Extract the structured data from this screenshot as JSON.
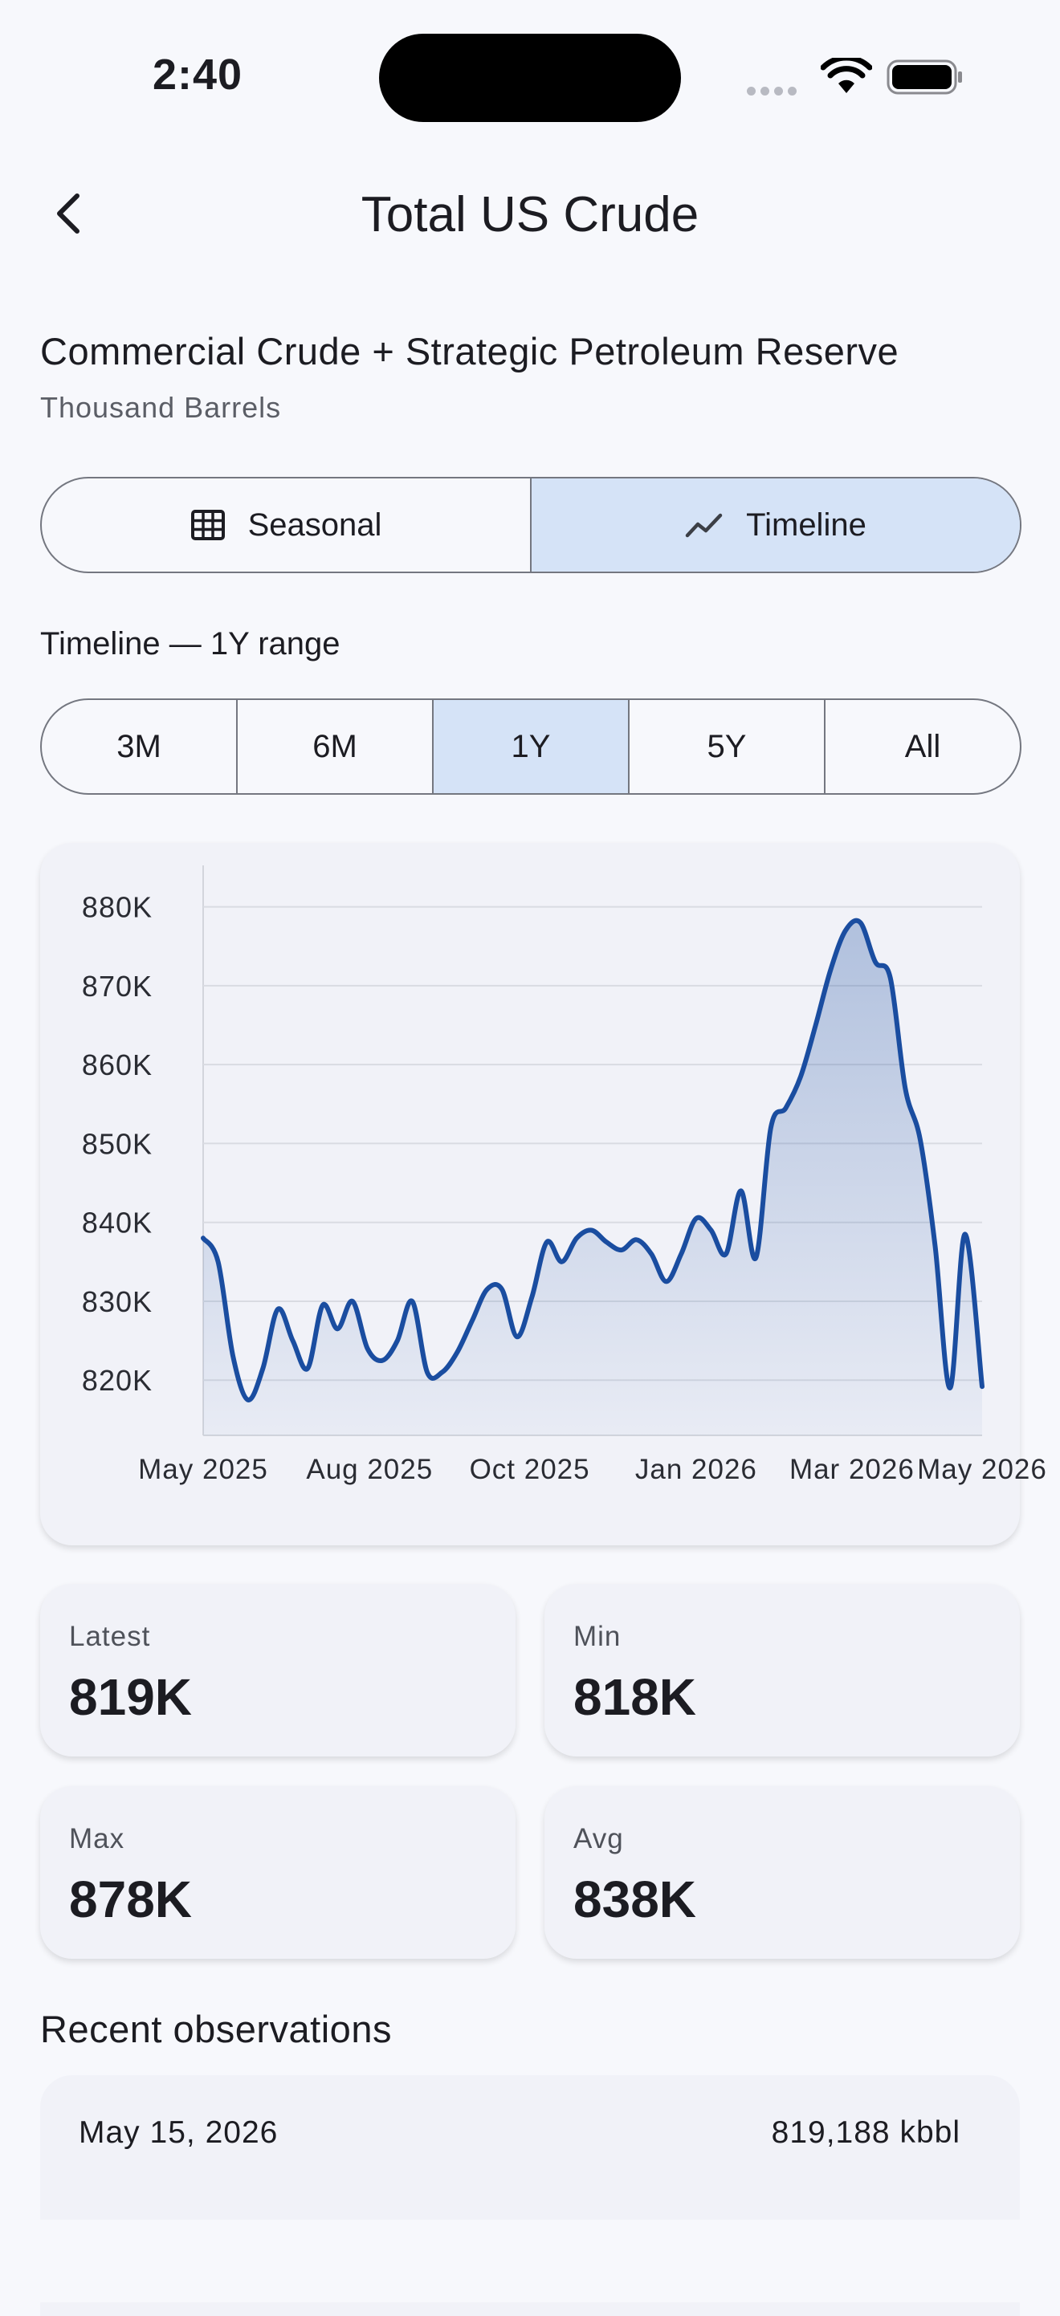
{
  "status": {
    "time": "2:40",
    "icons": [
      "cellular-dots-icon",
      "wifi-icon",
      "battery-icon"
    ]
  },
  "nav": {
    "back_icon": "chevron-left-icon",
    "title": "Total US Crude"
  },
  "series_title": "Commercial Crude + Strategic Petroleum Reserve",
  "series_unit": "Thousand Barrels",
  "view_toggle": {
    "options": [
      {
        "label": "Seasonal",
        "icon": "grid-icon",
        "selected": false
      },
      {
        "label": "Timeline",
        "icon": "trend-line-icon",
        "selected": true
      }
    ]
  },
  "range_label": "Timeline — 1Y range",
  "range_toggle": {
    "options": [
      "3M",
      "6M",
      "1Y",
      "5Y",
      "All"
    ],
    "selected": "1Y"
  },
  "colors": {
    "accent": "#1a4da0",
    "selected_segment": "#d5e3f7",
    "card": "#f1f2f8",
    "background": "#f7f8fc"
  },
  "chart_data": {
    "type": "area",
    "ylim": [
      813000,
      882000
    ],
    "y_ticks": [
      820000,
      830000,
      840000,
      850000,
      860000,
      870000,
      880000
    ],
    "y_tick_labels": [
      "820K",
      "830K",
      "840K",
      "850K",
      "860K",
      "870K",
      "880K"
    ],
    "x_tick_labels": [
      "May 2025",
      "Aug 2025",
      "Oct 2025",
      "Jan 2026",
      "Mar 2026",
      "May 2026"
    ],
    "x_tick_dates": [
      "2025-05-15",
      "2025-08-01",
      "2025-10-15",
      "2026-01-01",
      "2026-03-15",
      "2026-05-15"
    ],
    "grid": true,
    "series": [
      {
        "x": [
          "2025-05-15",
          "2025-05-22",
          "2025-05-29",
          "2025-06-05",
          "2025-06-12",
          "2025-06-19",
          "2025-06-26",
          "2025-07-03",
          "2025-07-10",
          "2025-07-17",
          "2025-07-24",
          "2025-07-31",
          "2025-08-07",
          "2025-08-14",
          "2025-08-21",
          "2025-08-28",
          "2025-09-04",
          "2025-09-11",
          "2025-09-18",
          "2025-09-25",
          "2025-10-02",
          "2025-10-09",
          "2025-10-16",
          "2025-10-23",
          "2025-10-30",
          "2025-11-06",
          "2025-11-13",
          "2025-11-20",
          "2025-11-27",
          "2025-12-04",
          "2025-12-11",
          "2025-12-18",
          "2025-12-25",
          "2026-01-01",
          "2026-01-08",
          "2026-01-15",
          "2026-01-22",
          "2026-01-29",
          "2026-02-05",
          "2026-02-12",
          "2026-02-19",
          "2026-02-26",
          "2026-03-05",
          "2026-03-12",
          "2026-03-19",
          "2026-03-26",
          "2026-04-02",
          "2026-04-09",
          "2026-04-16",
          "2026-04-23",
          "2026-04-30",
          "2026-05-07",
          "2026-05-15"
        ],
        "y": [
          838000,
          835000,
          823000,
          817500,
          821500,
          829000,
          825000,
          821500,
          829500,
          826500,
          830000,
          824000,
          822500,
          825000,
          830000,
          821000,
          821000,
          823500,
          827500,
          831500,
          831500,
          825500,
          830500,
          837500,
          835000,
          838000,
          839000,
          837500,
          836500,
          837800,
          836000,
          832500,
          836000,
          840500,
          839000,
          836000,
          844000,
          835500,
          852000,
          854500,
          858500,
          865000,
          872000,
          877000,
          878000,
          873000,
          871000,
          857000,
          850500,
          837000,
          819000,
          838500,
          819188
        ]
      }
    ]
  },
  "stats": [
    {
      "label": "Latest",
      "value": "819K"
    },
    {
      "label": "Min",
      "value": "818K"
    },
    {
      "label": "Max",
      "value": "878K"
    },
    {
      "label": "Avg",
      "value": "838K"
    }
  ],
  "observations": {
    "title": "Recent observations",
    "rows": [
      {
        "date": "May 15, 2026",
        "value": "819,188 kbbl"
      }
    ]
  }
}
